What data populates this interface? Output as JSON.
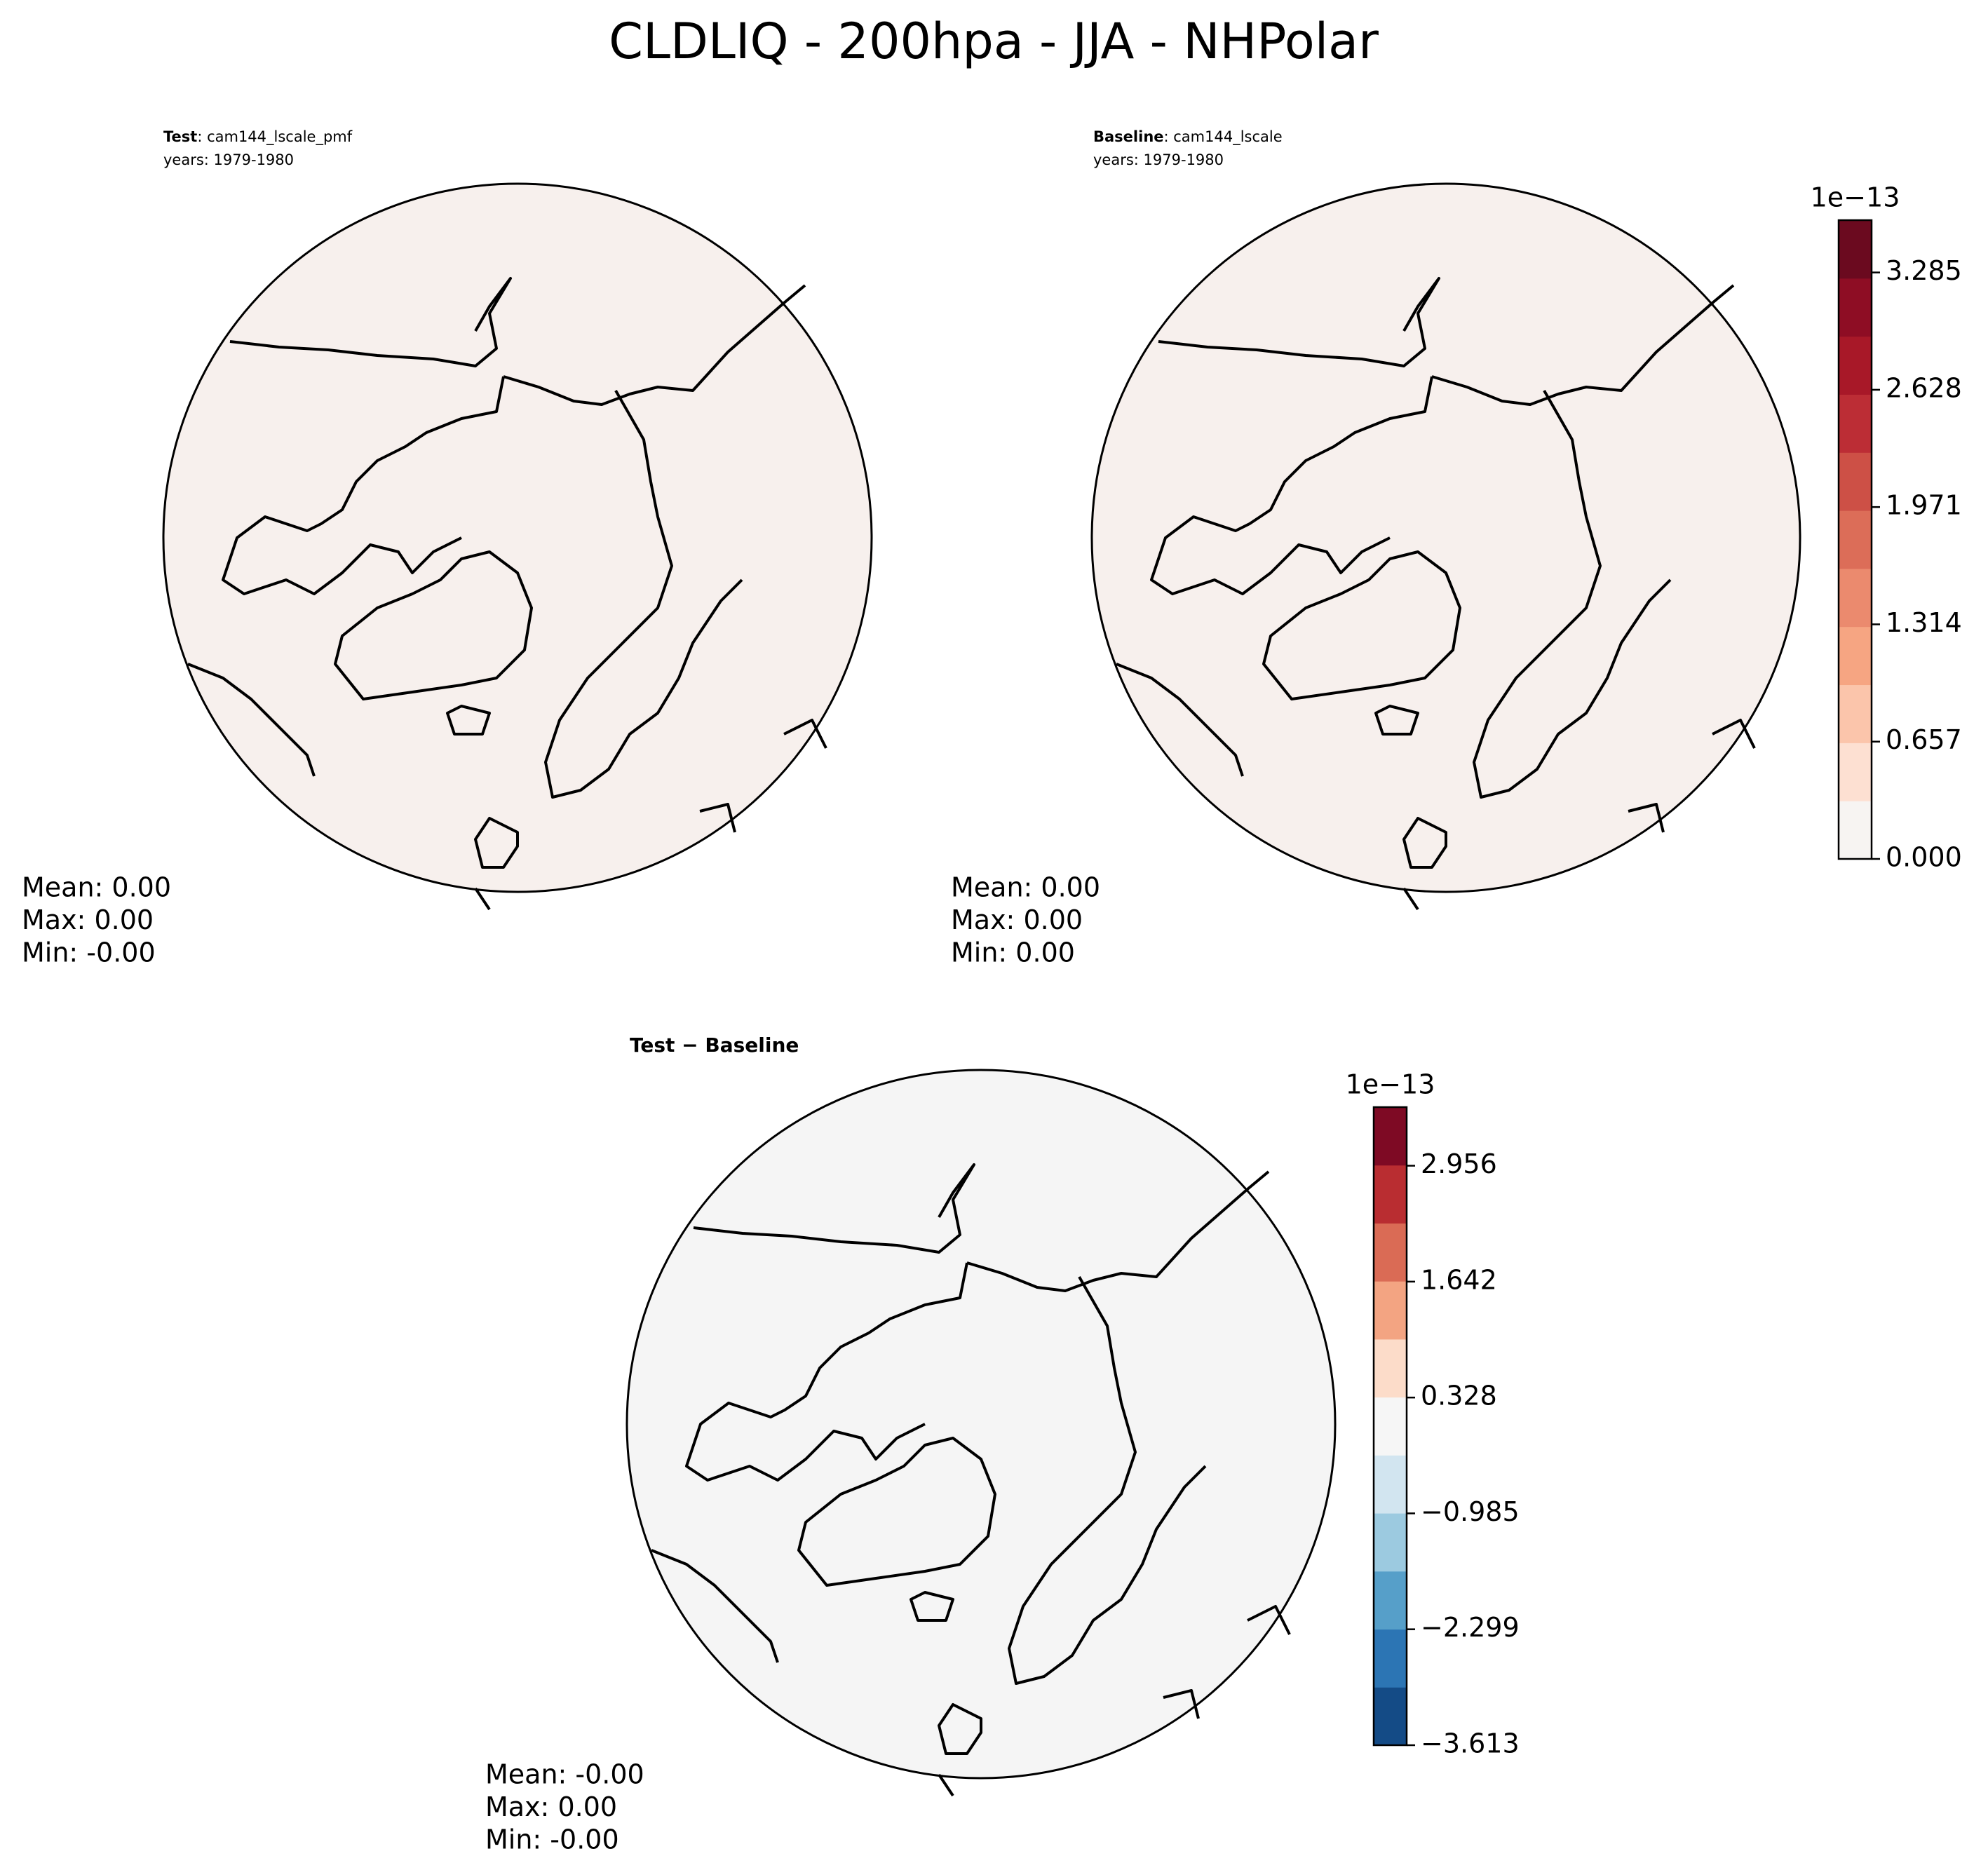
{
  "title": "CLDLIQ - 200hpa - JJA - NHPolar",
  "chart_data": [
    {
      "type": "map",
      "title_label": "Test",
      "title_case": ": cam144_lscale_pmf",
      "years": "years: 1979-1980",
      "fill_color": "#f7f0ed",
      "stats": [
        "Mean:  0.00",
        "Max:  0.00",
        "Min: -0.00"
      ]
    },
    {
      "type": "map",
      "title_label": "Baseline",
      "title_case": ": cam144_lscale",
      "years": "years: 1979-1980",
      "fill_color": "#f7f0ed",
      "stats": [
        "Mean:  0.00",
        "Max:  0.00",
        "Min:  0.00"
      ],
      "colorbar": {
        "scale_label": "1e−13",
        "ylim": [
          0,
          3.578
        ],
        "yticks": [
          {
            "value": 0,
            "label": "0.000"
          },
          0.657,
          1.314,
          1.971,
          2.628,
          3.285
        ],
        "colors": [
          "#f7f4f2",
          "#fde0d2",
          "#fbc5ab",
          "#f6a582",
          "#eb8a6e",
          "#dc6d58",
          "#cd5046",
          "#bc2d35",
          "#a81828",
          "#8e0d24",
          "#6b0a1f"
        ]
      }
    },
    {
      "type": "map",
      "title_label": "Test − Baseline",
      "fill_color": "#f5f5f5",
      "stats": [
        "Mean: -0.00",
        "Max:  0.00",
        "Min: -0.00"
      ],
      "colorbar": {
        "scale_label": "1e−13",
        "ylim": [
          -3.613,
          3.62
        ],
        "yticks": [
          {
            "value": -3.613,
            "label": "−3.613"
          },
          {
            "value": -2.299,
            "label": "−2.299"
          },
          {
            "value": -0.985,
            "label": "−0.985"
          },
          0.328,
          1.642,
          2.956
        ],
        "colors": [
          "#144b86",
          "#2c75b4",
          "#569fc9",
          "#9ccae0",
          "#d2e5f0",
          "#f6f6f6",
          "#fcdcc9",
          "#f3a482",
          "#da6b55",
          "#b92d31",
          "#7e0a24"
        ]
      }
    }
  ]
}
